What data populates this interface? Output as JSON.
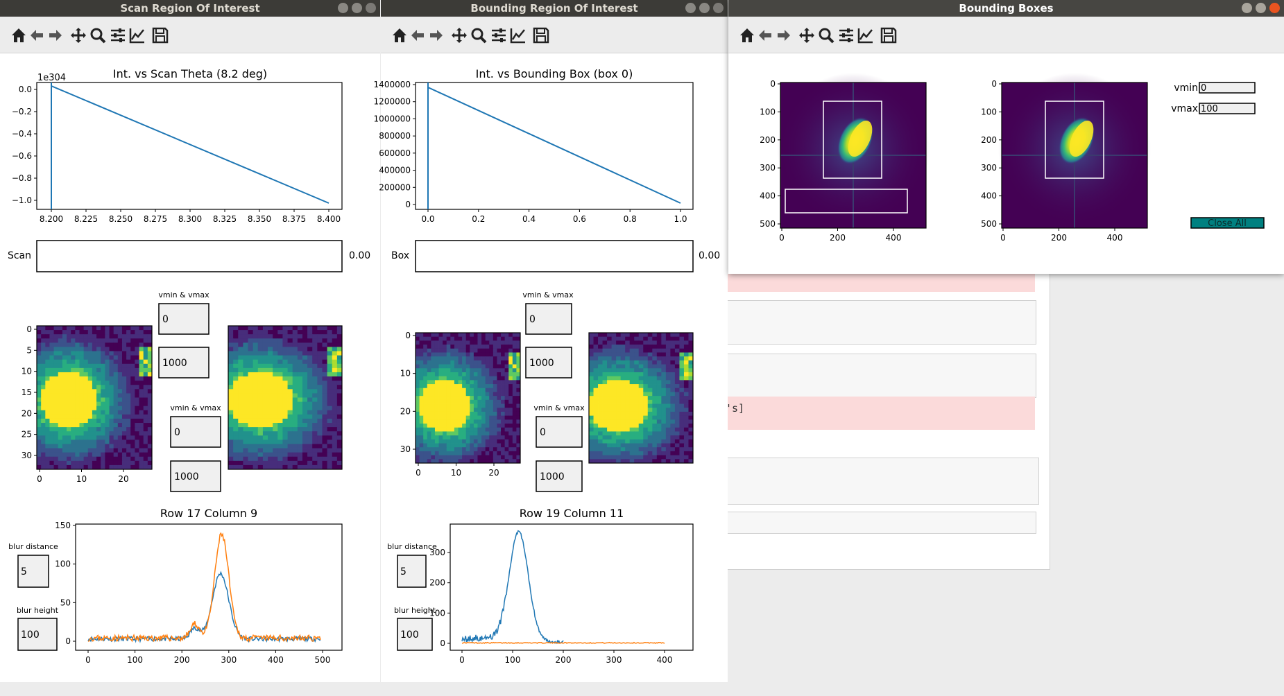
{
  "windows": {
    "scan": {
      "title": "Scan Region Of Interest"
    },
    "bounding": {
      "title": "Bounding Region Of Interest"
    },
    "boxes": {
      "title": "Bounding Boxes"
    }
  },
  "toolbar_icons": [
    "home-icon",
    "back-icon",
    "forward-icon",
    "pan-icon",
    "zoom-icon",
    "configure-subplots-icon",
    "edit-axis-icon",
    "save-icon"
  ],
  "scan": {
    "plot_title": "Int. vs Scan Theta (8.2 deg)",
    "offset_text": "1e304",
    "y_ticks": [
      "0.0",
      "−0.2",
      "−0.4",
      "−0.6",
      "−0.8",
      "−1.0"
    ],
    "x_ticks": [
      "8.200",
      "8.225",
      "8.250",
      "8.275",
      "8.300",
      "8.325",
      "8.350",
      "8.375",
      "8.400"
    ],
    "slider_label": "Scan",
    "slider_value": "0.00",
    "vmin_vmax_label_1": "vmin & vmax",
    "vmin_1": "0",
    "vmax_1": "1000",
    "vmin_vmax_label_2": "vmin & vmax",
    "vmin_2": "0",
    "vmax_2": "1000",
    "image_y_ticks": [
      "0",
      "5",
      "10",
      "15",
      "20",
      "25",
      "30"
    ],
    "image_x_ticks": [
      "0",
      "10",
      "20"
    ],
    "profile_title": "Row 17 Column 9",
    "profile_y_ticks": [
      "150",
      "100",
      "50",
      "0"
    ],
    "profile_x_ticks": [
      "0",
      "100",
      "200",
      "300",
      "400",
      "500"
    ],
    "blur_distance_label": "blur distance",
    "blur_distance": "5",
    "blur_height_label": "blur height",
    "blur_height": "100"
  },
  "bounding": {
    "plot_title": "Int. vs Bounding Box (box 0)",
    "y_ticks": [
      "1400000",
      "1200000",
      "1000000",
      "800000",
      "600000",
      "400000",
      "200000",
      "0"
    ],
    "x_ticks": [
      "0.0",
      "0.2",
      "0.4",
      "0.6",
      "0.8",
      "1.0"
    ],
    "slider_label": "Box",
    "slider_value": "0.00",
    "vmin_vmax_label_1": "vmin & vmax",
    "vmin_1": "0",
    "vmax_1": "1000",
    "vmin_vmax_label_2": "vmin & vmax",
    "vmin_2": "0",
    "vmax_2": "1000",
    "image_y_ticks": [
      "0",
      "10",
      "20",
      "30"
    ],
    "image_x_ticks": [
      "0",
      "10",
      "20"
    ],
    "profile_title": "Row 19 Column 11",
    "profile_y_ticks": [
      "300",
      "200",
      "100",
      "0"
    ],
    "profile_x_ticks": [
      "0",
      "100",
      "200",
      "300",
      "400"
    ],
    "blur_distance_label": "blur distance",
    "blur_distance": "5",
    "blur_height_label": "blur height",
    "blur_height": "100"
  },
  "boxes": {
    "y_ticks": [
      "0",
      "100",
      "200",
      "300",
      "400",
      "500"
    ],
    "x_ticks": [
      "0",
      "200",
      "400"
    ],
    "vmin_label": "vmin",
    "vmin": "0",
    "vmax_label": "vmax",
    "vmax": "100",
    "close_all_label": "Close All"
  },
  "background": {
    "snippet_text": "'s]"
  },
  "colors": {
    "series1": "#1f77b4",
    "series2": "#ff7f0e",
    "close_button": "#008080",
    "viridis_low": "#440154",
    "viridis_high": "#fde725"
  }
}
